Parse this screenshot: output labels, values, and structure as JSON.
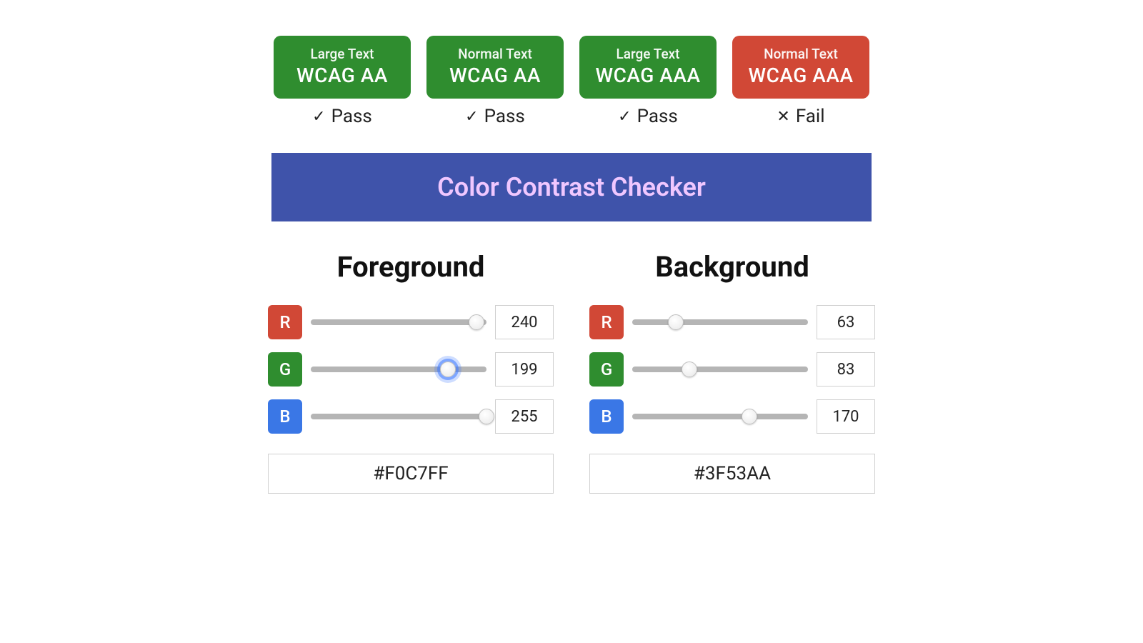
{
  "colors": {
    "pass_badge_bg": "#2f8d2f",
    "fail_badge_bg": "#d14836",
    "verdict_text": "#222222",
    "banner_bg": "#3f53aa",
    "banner_fg": "#f0c7ff",
    "chan_r": "#d14836",
    "chan_g": "#2f8d2f",
    "chan_b": "#3a77e6",
    "track": "#b5b5b5",
    "border": "#d0d0d0"
  },
  "badges": [
    {
      "text_size": "Large Text",
      "level": "WCAG AA",
      "pass": true,
      "verdict_label": "Pass",
      "mark": "✓"
    },
    {
      "text_size": "Normal Text",
      "level": "WCAG AA",
      "pass": true,
      "verdict_label": "Pass",
      "mark": "✓"
    },
    {
      "text_size": "Large Text",
      "level": "WCAG AAA",
      "pass": true,
      "verdict_label": "Pass",
      "mark": "✓"
    },
    {
      "text_size": "Normal Text",
      "level": "WCAG AAA",
      "pass": false,
      "verdict_label": "Fail",
      "mark": "✕"
    }
  ],
  "banner_title": "Color Contrast Checker",
  "panels": {
    "foreground": {
      "title": "Foreground",
      "channels": {
        "r": {
          "label": "R",
          "value": 240,
          "max": 255,
          "focused": false
        },
        "g": {
          "label": "G",
          "value": 199,
          "max": 255,
          "focused": true
        },
        "b": {
          "label": "B",
          "value": 255,
          "max": 255,
          "focused": false
        }
      },
      "hex": "#F0C7FF"
    },
    "background": {
      "title": "Background",
      "channels": {
        "r": {
          "label": "R",
          "value": 63,
          "max": 255,
          "focused": false
        },
        "g": {
          "label": "G",
          "value": 83,
          "max": 255,
          "focused": false
        },
        "b": {
          "label": "B",
          "value": 170,
          "max": 255,
          "focused": false
        }
      },
      "hex": "#3F53AA"
    }
  },
  "typography": {
    "badge_textsize_fontsize": 19,
    "badge_level_fontsize": 28,
    "verdict_fontsize": 26,
    "banner_fontsize": 36,
    "panel_title_fontsize": 40,
    "value_fontsize": 22,
    "hex_fontsize": 26
  }
}
